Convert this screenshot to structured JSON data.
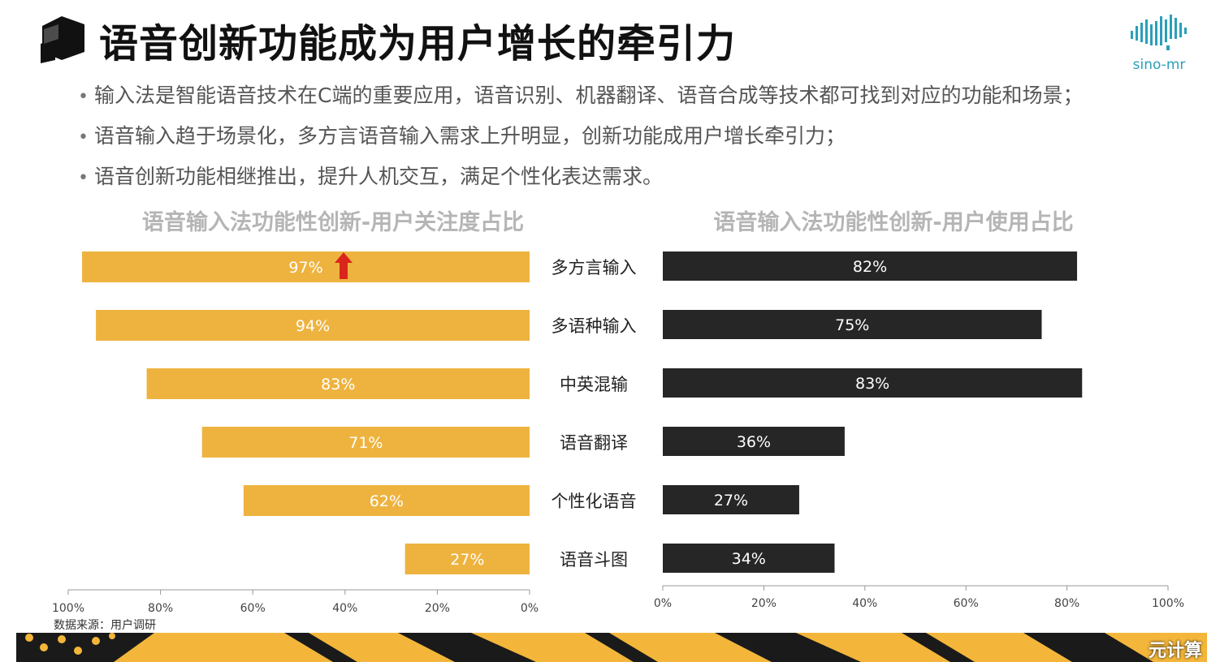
{
  "header": {
    "title": "语音创新功能成为用户增长的牵引力",
    "logo_text": "sino-mr"
  },
  "bullets": [
    "输入法是智能语音技术在C端的重要应用，语音识别、机器翻译、语音合成等技术都可找到对应的功能和场景；",
    "语音输入趋于场景化，多方言语音输入需求上升明显，创新功能成用户增长牵引力；",
    "语音创新功能相继推出，提升人机交互，满足个性化表达需求。"
  ],
  "colors": {
    "attention_bar": "#eeb33f",
    "usage_bar": "#262626",
    "arrow": "#d9261c",
    "footer_yellow": "#f3b63a",
    "footer_dark": "#1a1a1a"
  },
  "chart_data": [
    {
      "type": "bar",
      "orientation": "horizontal",
      "x_direction": "reversed",
      "title": "语音输入法功能性创新-用户关注度占比",
      "categories": [
        "多方言输入",
        "多语种输入",
        "中英混输",
        "语音翻译",
        "个性化语音",
        "语音斗图"
      ],
      "values": [
        97,
        94,
        83,
        71,
        62,
        27
      ],
      "data_labels": [
        "97%",
        "94%",
        "83%",
        "71%",
        "62%",
        "27%"
      ],
      "xlim": [
        0,
        100
      ],
      "xticks": [
        "100%",
        "80%",
        "60%",
        "40%",
        "20%",
        "0%"
      ],
      "annotation": "up-arrow-icon"
    },
    {
      "type": "bar",
      "orientation": "horizontal",
      "title": "语音输入法功能性创新-用户使用占比",
      "categories": [
        "多方言输入",
        "多语种输入",
        "中英混输",
        "语音翻译",
        "个性化语音",
        "语音斗图"
      ],
      "values": [
        82,
        75,
        83,
        36,
        27,
        34
      ],
      "data_labels": [
        "82%",
        "75%",
        "83%",
        "36%",
        "27%",
        "34%"
      ],
      "xlim": [
        0,
        100
      ],
      "xticks": [
        "0%",
        "20%",
        "40%",
        "60%",
        "80%",
        "100%"
      ]
    }
  ],
  "footer": {
    "source": "数据来源：用户调研",
    "watermark": "元计算"
  }
}
